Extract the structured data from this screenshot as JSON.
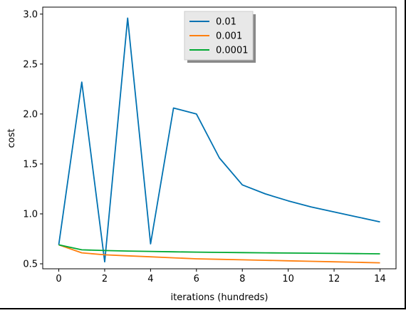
{
  "chart_data": {
    "type": "line",
    "xlabel": "iterations (hundreds)",
    "ylabel": "cost",
    "xlim": [
      -0.7,
      14.7
    ],
    "ylim": [
      0.45,
      3.07
    ],
    "xticks": [
      0,
      2,
      4,
      6,
      8,
      10,
      12,
      14
    ],
    "xtick_labels": [
      "0",
      "2",
      "4",
      "6",
      "8",
      "10",
      "12",
      "14"
    ],
    "yticks": [
      0.5,
      1.0,
      1.5,
      2.0,
      2.5,
      3.0
    ],
    "ytick_labels": [
      "0.5",
      "1.0",
      "1.5",
      "2.0",
      "2.5",
      "3.0"
    ],
    "grid": false,
    "legend_position": "top-center",
    "x": [
      0,
      1,
      2,
      3,
      4,
      5,
      6,
      7,
      8,
      9,
      10,
      11,
      12,
      13,
      14
    ],
    "series": [
      {
        "name": "0.01",
        "color": "#0072b2",
        "values": [
          0.69,
          2.32,
          0.52,
          2.96,
          0.7,
          2.06,
          2.0,
          1.56,
          1.29,
          1.2,
          1.13,
          1.07,
          1.02,
          0.97,
          0.92
        ]
      },
      {
        "name": "0.001",
        "color": "#ff7f0e",
        "values": [
          0.69,
          0.61,
          0.59,
          0.58,
          0.57,
          0.56,
          0.55,
          0.545,
          0.54,
          0.535,
          0.53,
          0.525,
          0.52,
          0.515,
          0.51
        ]
      },
      {
        "name": "0.0001",
        "color": "#00a933",
        "values": [
          0.69,
          0.64,
          0.633,
          0.628,
          0.624,
          0.62,
          0.617,
          0.614,
          0.612,
          0.61,
          0.608,
          0.606,
          0.604,
          0.602,
          0.6
        ]
      }
    ]
  }
}
